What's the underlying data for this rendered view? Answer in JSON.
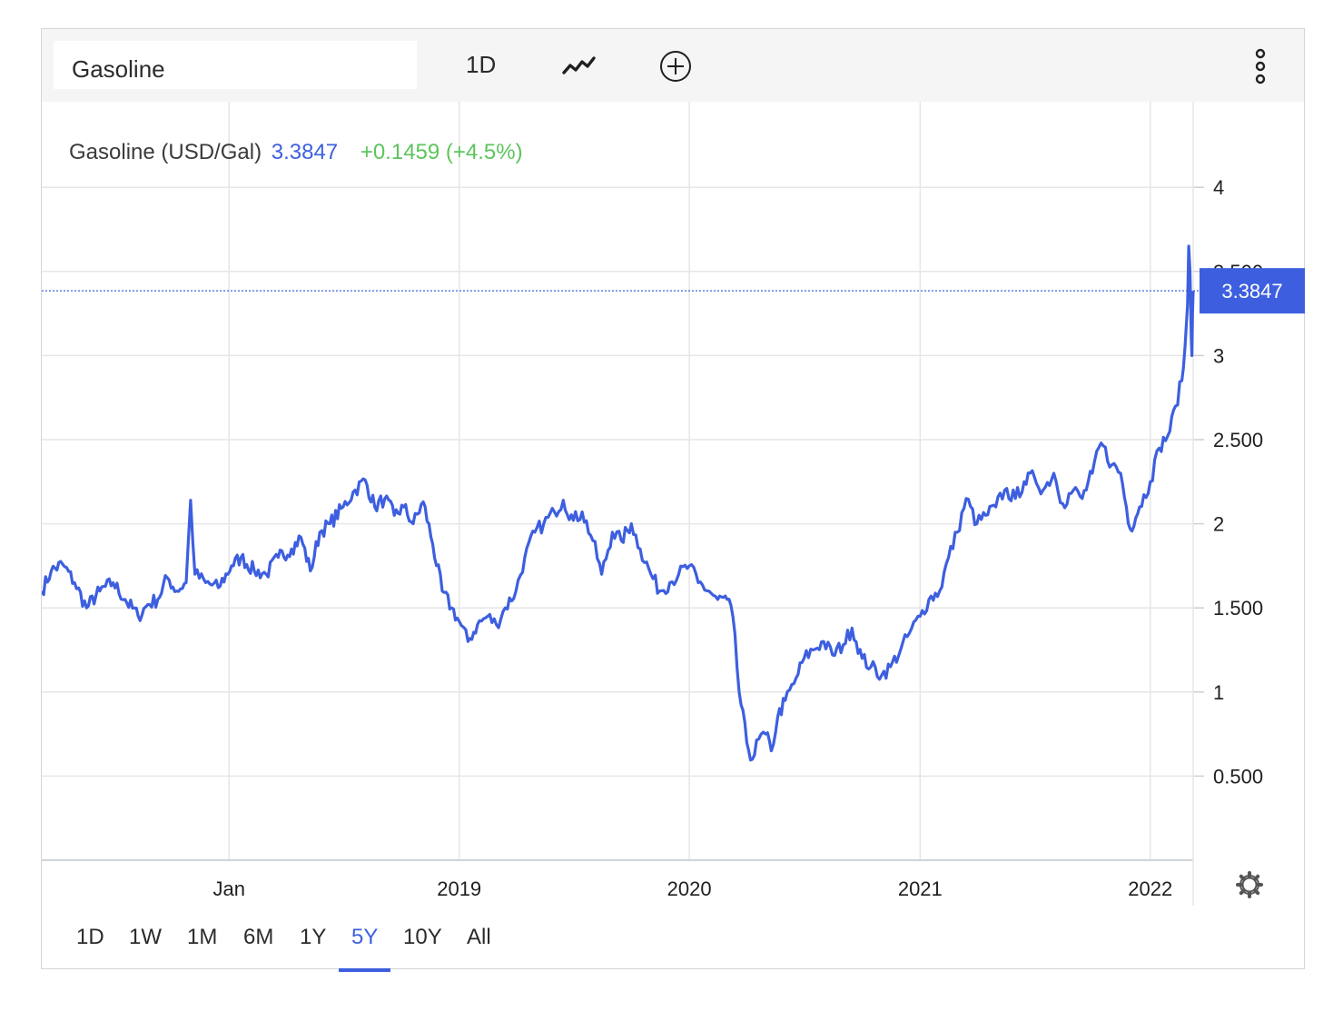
{
  "toolbar": {
    "search_value": "Gasoline",
    "interval_label": "1D",
    "chart_type_icon": "line-chart-icon",
    "add_icon": "plus-circle-icon",
    "menu_icon": "more-vertical-icon"
  },
  "legend": {
    "name": "Gasoline (USD/Gal)",
    "price": "3.3847",
    "change": "+0.1459 (+4.5%)"
  },
  "price_tag": "3.3847",
  "settings_icon": "gear-icon",
  "ranges": [
    "1D",
    "1W",
    "1M",
    "6M",
    "1Y",
    "5Y",
    "10Y",
    "All"
  ],
  "active_range": "5Y",
  "colors": {
    "line": "#3d5fdf",
    "accent": "#3d5fdf",
    "change_positive": "#5cc55c"
  },
  "chart_data": {
    "type": "line",
    "title": "",
    "xlabel": "",
    "ylabel": "",
    "x_ticks": [
      "Jan",
      "2019",
      "2020",
      "2021",
      "2022"
    ],
    "x_tick_dates": [
      "2018-01-01",
      "2019-01-01",
      "2020-01-01",
      "2021-01-01",
      "2022-01-01"
    ],
    "y_ticks": [
      "4",
      "3.500",
      "3",
      "2.500",
      "2",
      "1.500",
      "1",
      "0.500"
    ],
    "y_tick_values": [
      4,
      3.5,
      3,
      2.5,
      2,
      1.5,
      1,
      0.5
    ],
    "xlim": [
      "2017-03-10",
      "2022-03-10"
    ],
    "ylim": [
      0,
      4.5
    ],
    "grid": true,
    "last_value": 3.3847,
    "series": [
      {
        "values": [
          [
            "2017-03-10",
            1.6
          ],
          [
            "2017-03-25",
            1.72
          ],
          [
            "2017-04-12",
            1.76
          ],
          [
            "2017-05-01",
            1.65
          ],
          [
            "2017-05-20",
            1.5
          ],
          [
            "2017-06-10",
            1.6
          ],
          [
            "2017-07-01",
            1.65
          ],
          [
            "2017-07-20",
            1.55
          ],
          [
            "2017-08-10",
            1.45
          ],
          [
            "2017-08-25",
            1.52
          ],
          [
            "2017-09-10",
            1.55
          ],
          [
            "2017-09-25",
            1.68
          ],
          [
            "2017-10-10",
            1.6
          ],
          [
            "2017-10-25",
            1.65
          ],
          [
            "2017-11-01",
            2.14
          ],
          [
            "2017-11-08",
            1.7
          ],
          [
            "2017-11-25",
            1.65
          ],
          [
            "2017-12-15",
            1.62
          ],
          [
            "2018-01-05",
            1.75
          ],
          [
            "2018-01-20",
            1.8
          ],
          [
            "2018-02-10",
            1.72
          ],
          [
            "2018-03-01",
            1.7
          ],
          [
            "2018-03-20",
            1.8
          ],
          [
            "2018-04-10",
            1.85
          ],
          [
            "2018-04-25",
            1.92
          ],
          [
            "2018-05-10",
            1.72
          ],
          [
            "2018-05-25",
            1.95
          ],
          [
            "2018-06-10",
            2.0
          ],
          [
            "2018-07-01",
            2.1
          ],
          [
            "2018-07-20",
            2.2
          ],
          [
            "2018-08-05",
            2.26
          ],
          [
            "2018-08-20",
            2.1
          ],
          [
            "2018-09-05",
            2.15
          ],
          [
            "2018-09-20",
            2.05
          ],
          [
            "2018-10-05",
            2.1
          ],
          [
            "2018-10-20",
            2.0
          ],
          [
            "2018-11-05",
            2.13
          ],
          [
            "2018-11-20",
            1.88
          ],
          [
            "2018-12-05",
            1.6
          ],
          [
            "2018-12-20",
            1.5
          ],
          [
            "2019-01-01",
            1.42
          ],
          [
            "2019-01-15",
            1.3
          ],
          [
            "2019-01-30",
            1.4
          ],
          [
            "2019-02-15",
            1.45
          ],
          [
            "2019-03-01",
            1.4
          ],
          [
            "2019-03-15",
            1.5
          ],
          [
            "2019-04-01",
            1.6
          ],
          [
            "2019-04-15",
            1.8
          ],
          [
            "2019-05-01",
            1.95
          ],
          [
            "2019-05-15",
            2.0
          ],
          [
            "2019-06-01",
            2.07
          ],
          [
            "2019-06-15",
            2.14
          ],
          [
            "2019-07-01",
            2.02
          ],
          [
            "2019-07-15",
            2.07
          ],
          [
            "2019-08-01",
            1.9
          ],
          [
            "2019-08-15",
            1.7
          ],
          [
            "2019-09-01",
            1.95
          ],
          [
            "2019-09-15",
            1.9
          ],
          [
            "2019-10-01",
            2.0
          ],
          [
            "2019-10-15",
            1.85
          ],
          [
            "2019-11-01",
            1.7
          ],
          [
            "2019-11-15",
            1.6
          ],
          [
            "2019-12-01",
            1.65
          ],
          [
            "2019-12-15",
            1.7
          ],
          [
            "2020-01-01",
            1.75
          ],
          [
            "2020-01-15",
            1.65
          ],
          [
            "2020-02-01",
            1.6
          ],
          [
            "2020-02-15",
            1.55
          ],
          [
            "2020-03-01",
            1.55
          ],
          [
            "2020-03-10",
            1.45
          ],
          [
            "2020-03-20",
            1.0
          ],
          [
            "2020-04-01",
            0.7
          ],
          [
            "2020-04-10",
            0.6
          ],
          [
            "2020-04-20",
            0.72
          ],
          [
            "2020-05-01",
            0.75
          ],
          [
            "2020-05-10",
            0.65
          ],
          [
            "2020-05-20",
            0.85
          ],
          [
            "2020-06-01",
            0.95
          ],
          [
            "2020-06-15",
            1.05
          ],
          [
            "2020-07-01",
            1.2
          ],
          [
            "2020-07-15",
            1.25
          ],
          [
            "2020-08-01",
            1.3
          ],
          [
            "2020-08-15",
            1.22
          ],
          [
            "2020-09-01",
            1.28
          ],
          [
            "2020-09-15",
            1.38
          ],
          [
            "2020-10-01",
            1.2
          ],
          [
            "2020-10-15",
            1.15
          ],
          [
            "2020-11-01",
            1.1
          ],
          [
            "2020-11-15",
            1.15
          ],
          [
            "2020-12-01",
            1.25
          ],
          [
            "2020-12-15",
            1.35
          ],
          [
            "2021-01-01",
            1.45
          ],
          [
            "2021-01-15",
            1.55
          ],
          [
            "2021-02-01",
            1.6
          ],
          [
            "2021-02-15",
            1.8
          ],
          [
            "2021-03-01",
            1.95
          ],
          [
            "2021-03-15",
            2.15
          ],
          [
            "2021-04-01",
            2.0
          ],
          [
            "2021-04-15",
            2.05
          ],
          [
            "2021-05-01",
            2.1
          ],
          [
            "2021-05-15",
            2.2
          ],
          [
            "2021-06-01",
            2.15
          ],
          [
            "2021-06-15",
            2.25
          ],
          [
            "2021-07-01",
            2.28
          ],
          [
            "2021-07-15",
            2.2
          ],
          [
            "2021-08-01",
            2.3
          ],
          [
            "2021-08-15",
            2.12
          ],
          [
            "2021-09-01",
            2.2
          ],
          [
            "2021-09-15",
            2.15
          ],
          [
            "2021-10-01",
            2.3
          ],
          [
            "2021-10-15",
            2.48
          ],
          [
            "2021-11-01",
            2.35
          ],
          [
            "2021-11-15",
            2.3
          ],
          [
            "2021-11-30",
            1.97
          ],
          [
            "2021-12-15",
            2.1
          ],
          [
            "2022-01-01",
            2.25
          ],
          [
            "2022-01-15",
            2.45
          ],
          [
            "2022-02-01",
            2.55
          ],
          [
            "2022-02-10",
            2.7
          ],
          [
            "2022-02-20",
            2.85
          ],
          [
            "2022-02-25",
            3.05
          ],
          [
            "2022-03-01",
            3.3
          ],
          [
            "2022-03-03",
            3.65
          ],
          [
            "2022-03-05",
            3.5
          ],
          [
            "2022-03-07",
            3.1
          ],
          [
            "2022-03-08",
            3.0
          ],
          [
            "2022-03-09",
            3.25
          ],
          [
            "2022-03-10",
            3.3847
          ]
        ]
      }
    ]
  }
}
